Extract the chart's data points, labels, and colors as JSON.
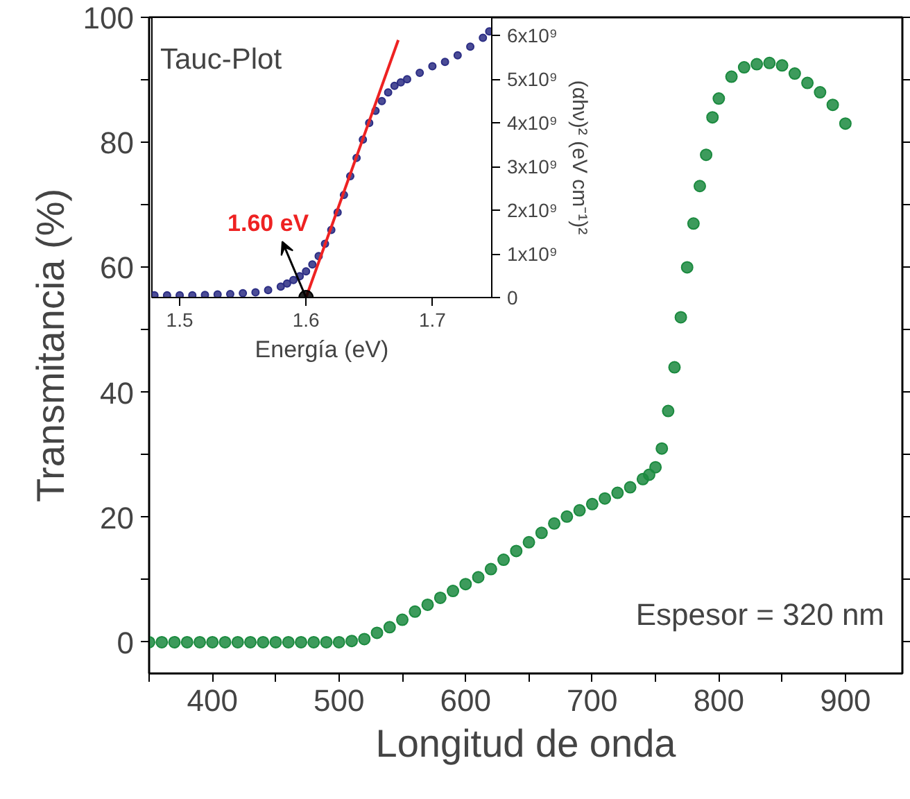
{
  "chart_data": [
    {
      "type": "scatter",
      "xlabel": "Longitud de onda",
      "ylabel": "Transmitancia (%)",
      "marker": "circle",
      "color": "#1b8a3f",
      "x": [
        350,
        360,
        370,
        380,
        390,
        400,
        410,
        420,
        430,
        440,
        450,
        460,
        470,
        480,
        490,
        500,
        510,
        520,
        530,
        540,
        550,
        560,
        570,
        580,
        590,
        600,
        610,
        620,
        630,
        640,
        650,
        660,
        670,
        680,
        690,
        700,
        710,
        720,
        730,
        740,
        745,
        750,
        755,
        760,
        765,
        770,
        775,
        780,
        785,
        790,
        795,
        800,
        810,
        820,
        830,
        840,
        850,
        860,
        870,
        880,
        890,
        900
      ],
      "values": [
        0,
        0,
        0,
        0,
        0,
        0,
        0,
        0,
        0,
        0,
        0,
        0,
        0,
        0,
        0,
        0,
        0.2,
        0.5,
        1.5,
        2.4,
        3.6,
        4.9,
        6.0,
        7.1,
        8.2,
        9.3,
        10.4,
        11.7,
        13.2,
        14.6,
        16.0,
        17.5,
        19.0,
        20.1,
        21.1,
        22.1,
        23.0,
        23.9,
        24.8,
        26.1,
        26.8,
        28,
        31,
        37,
        44,
        52,
        60,
        67,
        73,
        78,
        84,
        87,
        90.5,
        92,
        92.5,
        92.7,
        92.3,
        91,
        89.5,
        88,
        86,
        83
      ],
      "xlim": [
        350,
        945
      ],
      "ylim": [
        -5,
        100
      ],
      "xticks": [
        {
          "value": 350,
          "label": null
        },
        400,
        {
          "value": 450,
          "label": null
        },
        500,
        {
          "value": 550,
          "label": null
        },
        600,
        {
          "value": 650,
          "label": null
        },
        700,
        {
          "value": 750,
          "label": null
        },
        800,
        {
          "value": 850,
          "label": null
        },
        900
      ],
      "yticks": [
        0,
        {
          "value": 10,
          "label": null
        },
        20,
        {
          "value": 30,
          "label": null
        },
        40,
        {
          "value": 50,
          "label": null
        },
        60,
        {
          "value": 70,
          "label": null
        },
        80,
        {
          "value": 90,
          "label": null
        },
        100
      ],
      "annotations": [
        "Espesor = 320 nm"
      ]
    },
    {
      "type": "scatter",
      "title": "Tauc-Plot",
      "xlabel": "Energía (eV)",
      "ylabel": "(αhν)² (eV cm⁻¹)²",
      "xlim": [
        1.478,
        1.747
      ],
      "ylim": [
        0,
        6420000000
      ],
      "xticks": [
        1.5,
        1.6,
        1.7
      ],
      "yticks": [
        0,
        {
          "value": 1000000000,
          "label": "1x10⁹"
        },
        {
          "value": 2000000000,
          "label": "2x10⁹"
        },
        {
          "value": 3000000000,
          "label": "3x10⁹"
        },
        {
          "value": 4000000000,
          "label": "4x10⁹"
        },
        {
          "value": 5000000000,
          "label": "5x10⁹"
        },
        {
          "value": 6000000000,
          "label": "6x10⁹"
        }
      ],
      "series": [
        {
          "type": "scatter",
          "marker": "circle",
          "color": "#2b2d84",
          "x": [
            1.48,
            1.49,
            1.5,
            1.51,
            1.52,
            1.53,
            1.54,
            1.55,
            1.56,
            1.57,
            1.58,
            1.585,
            1.59,
            1.595,
            1.6,
            1.605,
            1.61,
            1.615,
            1.62,
            1.625,
            1.63,
            1.635,
            1.64,
            1.645,
            1.65,
            1.655,
            1.66,
            1.665,
            1.67,
            1.675,
            1.68,
            1.69,
            1.7,
            1.71,
            1.72,
            1.73,
            1.74,
            1.745
          ],
          "values": [
            50000000,
            50000000,
            50000000,
            50000000,
            60000000,
            70000000,
            80000000,
            100000000,
            120000000,
            170000000,
            250000000,
            320000000,
            400000000,
            490000000,
            600000000,
            760000000,
            950000000,
            1230000000,
            1550000000,
            1950000000,
            2350000000,
            2780000000,
            3200000000,
            3620000000,
            4000000000,
            4280000000,
            4500000000,
            4700000000,
            4850000000,
            4930000000,
            5000000000,
            5150000000,
            5300000000,
            5400000000,
            5550000000,
            5750000000,
            5950000000,
            6100000000
          ]
        },
        {
          "type": "line",
          "marker": "none",
          "color": "#ee2222",
          "x": [
            1.6,
            1.673
          ],
          "values": [
            0,
            5900000000
          ]
        },
        {
          "type": "scatter",
          "marker": "circle",
          "color": "#000000",
          "x": [
            1.6
          ],
          "values": [
            0
          ]
        }
      ],
      "annotations": [
        {
          "text": "1.60 eV",
          "x": 1.6,
          "y": 0
        }
      ]
    }
  ]
}
